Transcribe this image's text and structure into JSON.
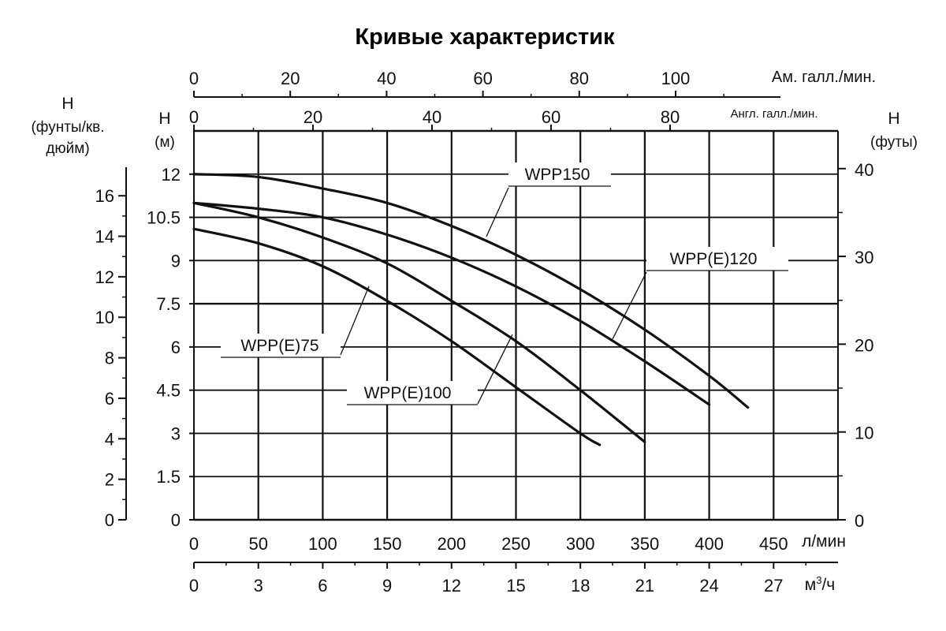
{
  "chart_data": {
    "type": "line",
    "title": "Кривые характеристик",
    "x_primary": {
      "label": "л/мин",
      "ticks": [
        0,
        50,
        100,
        150,
        200,
        250,
        300,
        350,
        400,
        450
      ],
      "range": [
        0,
        500
      ]
    },
    "x_m3h": {
      "label_base": "м",
      "label_sup": "3",
      "label_tail": "/ч",
      "ticks": [
        0,
        3,
        6,
        9,
        12,
        15,
        18,
        21,
        24,
        27
      ]
    },
    "x_us_gpm": {
      "label": "Ам. галл./мин.",
      "ticks": [
        0,
        20,
        40,
        60,
        80,
        100
      ]
    },
    "x_uk_gpm": {
      "label": "Англ. галл./мин.",
      "ticks": [
        0,
        20,
        40,
        60,
        80
      ]
    },
    "y_primary": {
      "label_line1": "H",
      "label_line2": "(м)",
      "ticks": [
        "0",
        "1.5",
        "3",
        "4.5",
        "6",
        "7.5",
        "9",
        "10.5",
        "12"
      ],
      "range": [
        0,
        13.5
      ]
    },
    "y_psi": {
      "label_line1": "H",
      "label_line2": "(фунты/кв.",
      "label_line3": "дюйм)",
      "ticks": [
        0,
        2,
        4,
        6,
        8,
        10,
        12,
        14,
        16
      ]
    },
    "y_feet": {
      "label_line1": "H",
      "label_line2": "(футы)",
      "ticks": [
        0,
        10,
        20,
        30,
        40
      ]
    },
    "grid": true,
    "series": [
      {
        "name": "WPP(E)75",
        "x": [
          0,
          50,
          100,
          150,
          200,
          250,
          300,
          315
        ],
        "y": [
          10.1,
          9.6,
          8.8,
          7.6,
          6.2,
          4.6,
          3.0,
          2.6
        ]
      },
      {
        "name": "WPP(E)100",
        "x": [
          0,
          50,
          100,
          150,
          200,
          250,
          300,
          350
        ],
        "y": [
          11.0,
          10.5,
          9.8,
          8.9,
          7.6,
          6.2,
          4.5,
          2.7
        ]
      },
      {
        "name": "WPP(E)120",
        "x": [
          0,
          50,
          100,
          150,
          200,
          250,
          300,
          350,
          400
        ],
        "y": [
          11.0,
          10.8,
          10.5,
          9.9,
          9.1,
          8.1,
          6.9,
          5.5,
          4.0
        ]
      },
      {
        "name": "WPP150",
        "x": [
          0,
          50,
          100,
          150,
          200,
          250,
          300,
          350,
          400,
          430
        ],
        "y": [
          12.0,
          11.9,
          11.5,
          11.0,
          10.2,
          9.2,
          8.0,
          6.6,
          5.0,
          3.9
        ]
      }
    ]
  }
}
